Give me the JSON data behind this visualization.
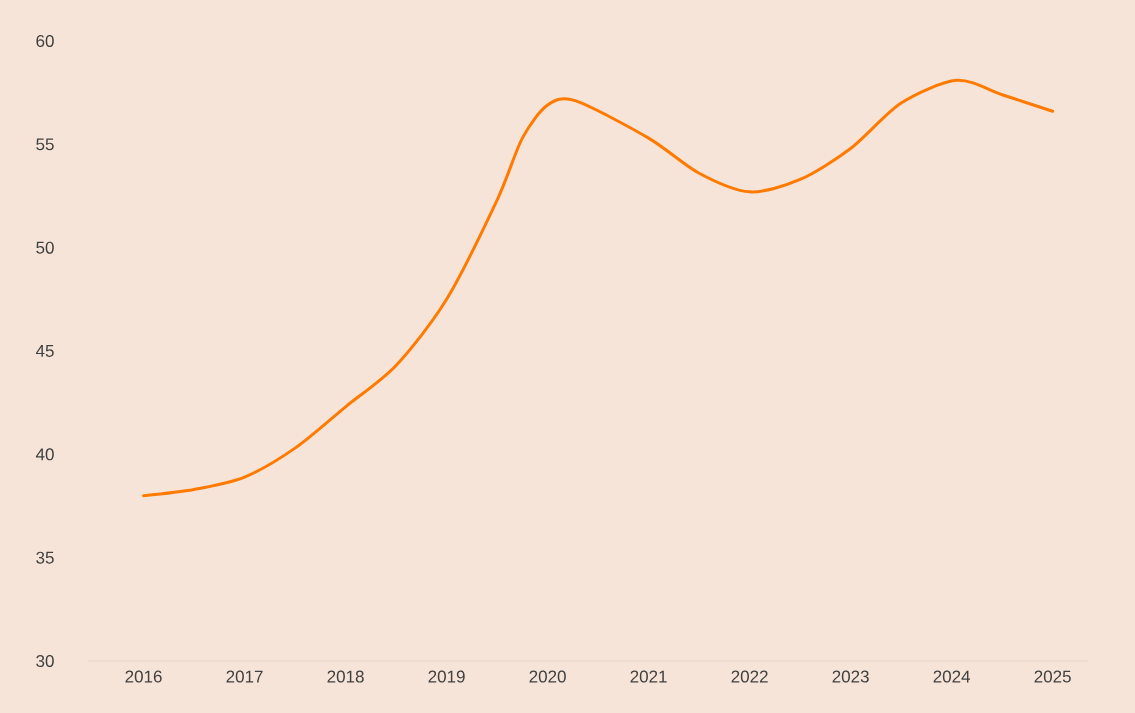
{
  "chart_data": {
    "type": "line",
    "x": [
      2016.0,
      2016.5,
      2017.0,
      2017.5,
      2018.0,
      2018.5,
      2019.0,
      2019.5,
      2019.75,
      2020.0,
      2020.28,
      2021.0,
      2021.5,
      2022.0,
      2022.5,
      2023.0,
      2023.5,
      2024.05,
      2024.5,
      2025.0
    ],
    "series": [
      {
        "color": "#ff7a00",
        "values": [
          38.0,
          38.3,
          38.9,
          40.3,
          42.3,
          44.3,
          47.5,
          52.3,
          55.3,
          56.9,
          57.1,
          55.3,
          53.6,
          52.7,
          53.3,
          54.8,
          57.0,
          58.1,
          57.4,
          56.6
        ]
      }
    ],
    "xlim": [
      2015.45,
      2025.35
    ],
    "xticks": [
      2016,
      2017,
      2018,
      2019,
      2020,
      2021,
      2022,
      2023,
      2024,
      2025
    ],
    "ylim": [
      30,
      60
    ],
    "yticks": [
      30,
      35,
      40,
      45,
      50,
      55,
      60
    ],
    "grid": false,
    "marker": "none",
    "line_style": "solid"
  }
}
